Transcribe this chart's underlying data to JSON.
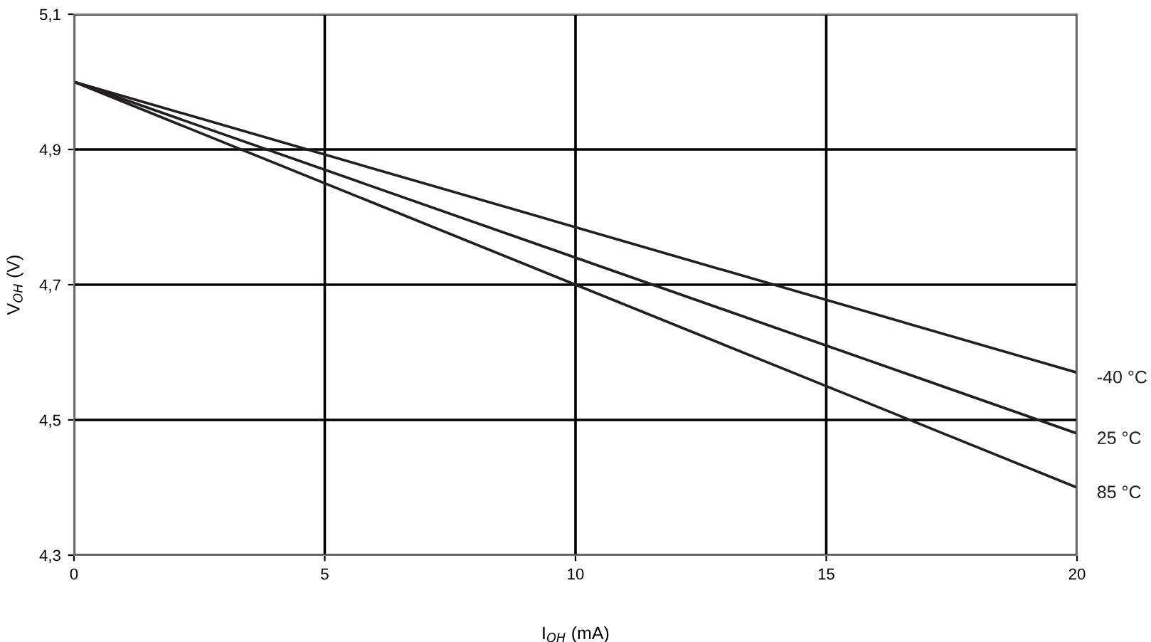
{
  "chart_data": {
    "type": "line",
    "xlabel": "I$_{OH}$ (mA)",
    "ylabel": "V$_{OH}$ (V)",
    "x": [
      0,
      20
    ],
    "series": [
      {
        "name": "-40 °C",
        "color": "#231f20",
        "values": [
          5.0,
          4.57
        ]
      },
      {
        "name": "25 °C",
        "color": "#231f20",
        "values": [
          5.0,
          4.48
        ]
      },
      {
        "name": "85 °C",
        "color": "#231f20",
        "values": [
          5.0,
          4.4
        ]
      }
    ],
    "xlim": [
      0,
      20
    ],
    "xticks": [
      0,
      5,
      10,
      15,
      20
    ],
    "ylim": [
      4.3,
      5.1
    ],
    "yticks": [
      {
        "value": 4.3,
        "label": "4,3"
      },
      {
        "value": 4.5,
        "label": "4,5"
      },
      {
        "value": 4.7,
        "label": "4,7"
      },
      {
        "value": 4.9,
        "label": "4,9"
      },
      {
        "value": 5.1,
        "label": "5,1"
      }
    ],
    "grid": true,
    "marker": "none",
    "line_style": "solid"
  }
}
